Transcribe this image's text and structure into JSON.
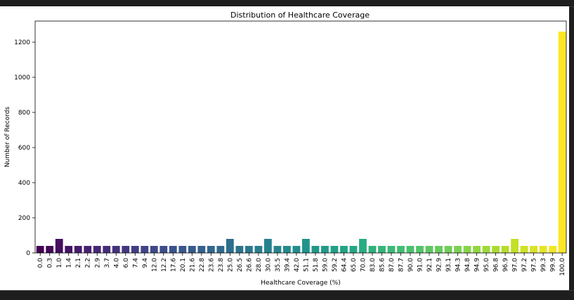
{
  "chart_data": {
    "type": "bar",
    "title": "Distribution of Healthcare Coverage",
    "xlabel": "Healthcare Coverage (%)",
    "ylabel": "Number of Records",
    "ylim": [
      0,
      1320
    ],
    "yticks": [
      0,
      200,
      400,
      600,
      800,
      1000,
      1200
    ],
    "grid": false,
    "palette": "viridis",
    "categories": [
      "0.0",
      "0.3",
      "1.0",
      "1.4",
      "2.1",
      "2.2",
      "2.9",
      "3.7",
      "4.0",
      "6.0",
      "7.4",
      "9.4",
      "12.0",
      "12.2",
      "17.6",
      "20.1",
      "21.6",
      "22.8",
      "23.6",
      "23.8",
      "25.0",
      "26.5",
      "26.6",
      "28.0",
      "30.0",
      "35.5",
      "39.4",
      "42.0",
      "51.1",
      "51.8",
      "59.0",
      "59.2",
      "64.4",
      "65.0",
      "70.0",
      "83.0",
      "85.6",
      "87.0",
      "87.7",
      "90.0",
      "91.0",
      "92.1",
      "92.9",
      "93.1",
      "94.3",
      "94.8",
      "94.9",
      "95.0",
      "96.8",
      "96.9",
      "97.0",
      "97.2",
      "97.5",
      "99.3",
      "99.9",
      "100.0"
    ],
    "values": [
      40,
      40,
      80,
      40,
      40,
      40,
      40,
      40,
      40,
      40,
      40,
      40,
      40,
      40,
      40,
      40,
      40,
      40,
      40,
      40,
      80,
      40,
      40,
      40,
      80,
      40,
      40,
      40,
      80,
      40,
      40,
      40,
      40,
      40,
      80,
      40,
      40,
      40,
      40,
      40,
      40,
      40,
      40,
      40,
      40,
      40,
      40,
      40,
      40,
      40,
      80,
      40,
      40,
      40,
      40,
      1260
    ]
  }
}
